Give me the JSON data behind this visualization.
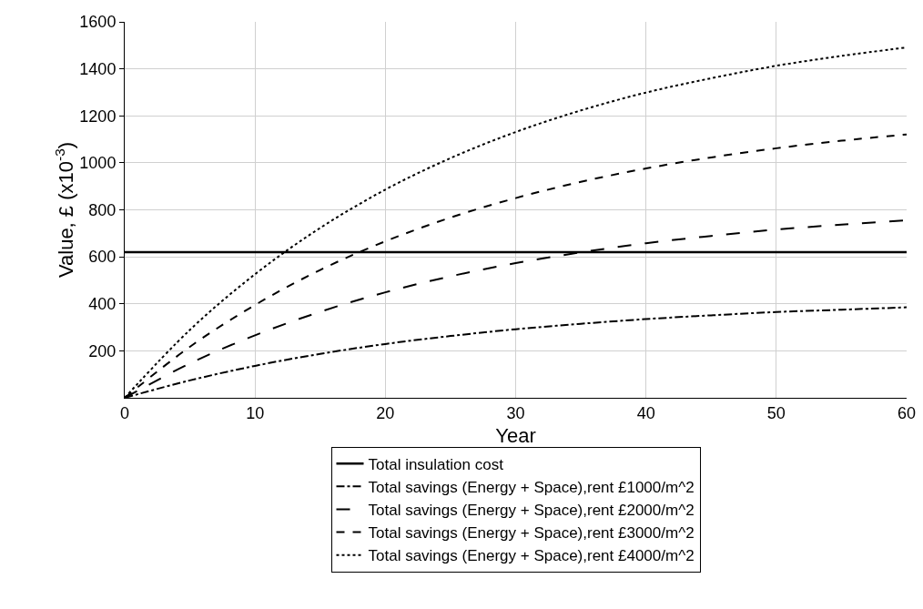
{
  "chart_data": {
    "type": "line",
    "xlabel": "Year",
    "ylabel": "Value, £ (x10$^{-3}$)",
    "x": [
      0,
      5,
      10,
      15,
      20,
      25,
      30,
      35,
      40,
      45,
      50,
      55,
      60
    ],
    "xlim": [
      0,
      60
    ],
    "xticks": [
      0,
      10,
      20,
      30,
      40,
      50,
      60
    ],
    "ylim": [
      0,
      1600
    ],
    "yticks": [
      200,
      400,
      600,
      800,
      1000,
      1200,
      1400,
      1600
    ],
    "grid": true,
    "legend": "bottom",
    "marker": "none",
    "series": [
      {
        "name": "Total insulation cost",
        "color": "#000000",
        "line_style": "solid",
        "x": [
          0,
          60
        ],
        "values": [
          620,
          620
        ]
      },
      {
        "name": "Total savings (Energy + Space),rent £1000/m^2",
        "color": "#000000",
        "line_style": "dashdot",
        "values": [
          0,
          74,
          136,
          187,
          229,
          263,
          292,
          315,
          335,
          351,
          365,
          375,
          385
        ]
      },
      {
        "name": "Total savings (Energy + Space),rent £2000/m^2",
        "color": "#000000",
        "line_style": "longdash",
        "values": [
          0,
          146,
          266,
          366,
          449,
          517,
          573,
          619,
          658,
          689,
          716,
          737,
          755
        ]
      },
      {
        "name": "Total savings (Energy + Space),rent £3000/m^2",
        "color": "#000000",
        "line_style": "dashed",
        "values": [
          0,
          217,
          395,
          544,
          666,
          767,
          850,
          919,
          976,
          1023,
          1062,
          1094,
          1121
        ]
      },
      {
        "name": "Total savings (Energy + Space),rent £4000/m^2",
        "color": "#000000",
        "line_style": "dotted",
        "values": [
          0,
          289,
          526,
          723,
          886,
          1020,
          1131,
          1223,
          1299,
          1360,
          1413,
          1455,
          1491
        ]
      }
    ]
  }
}
